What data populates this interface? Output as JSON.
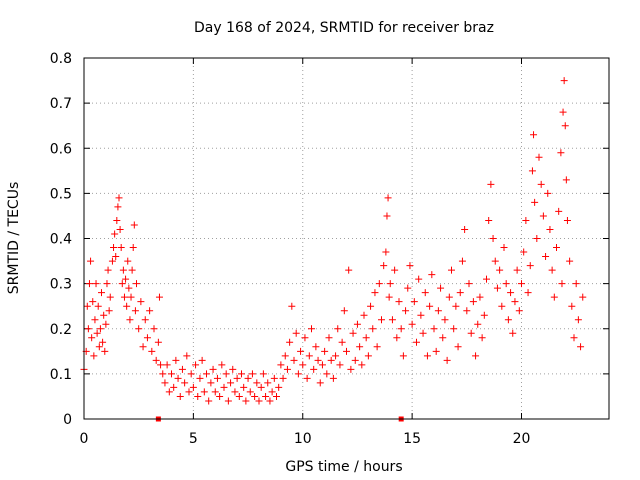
{
  "chart_data": {
    "type": "scatter",
    "title": "Day 168 of 2024, SRMTID for receiver braz",
    "xlabel": "GPS time / hours",
    "ylabel": "SRMTID / TECUs",
    "xlim": [
      0,
      24
    ],
    "ylim": [
      0,
      0.8
    ],
    "xticks": [
      0,
      5,
      10,
      15,
      20
    ],
    "xtick_labels": [
      "0",
      "5",
      "10",
      "15",
      "20"
    ],
    "yticks": [
      0,
      0.1,
      0.2,
      0.3,
      0.4,
      0.5,
      0.6,
      0.7,
      0.8
    ],
    "ytick_labels": [
      "0",
      "0.1",
      "0.2",
      "0.3",
      "0.4",
      "0.5",
      "0.6",
      "0.7",
      "0.8"
    ],
    "grid": true,
    "marker": "+",
    "colors": {
      "series": "#ff0000",
      "grid": "#a0a0a0",
      "axis": "#000000"
    },
    "series": [
      {
        "name": "SRMTID braz",
        "points": [
          [
            0.0,
            0.11
          ],
          [
            0.1,
            0.15
          ],
          [
            0.15,
            0.25
          ],
          [
            0.2,
            0.2
          ],
          [
            0.25,
            0.3
          ],
          [
            0.3,
            0.35
          ],
          [
            0.35,
            0.18
          ],
          [
            0.4,
            0.26
          ],
          [
            0.45,
            0.14
          ],
          [
            0.5,
            0.22
          ],
          [
            0.55,
            0.3
          ],
          [
            0.6,
            0.19
          ],
          [
            0.65,
            0.25
          ],
          [
            0.7,
            0.16
          ],
          [
            0.75,
            0.2
          ],
          [
            0.8,
            0.28
          ],
          [
            0.85,
            0.17
          ],
          [
            0.9,
            0.23
          ],
          [
            0.95,
            0.15
          ],
          [
            1.0,
            0.21
          ],
          [
            1.05,
            0.3
          ],
          [
            1.1,
            0.33
          ],
          [
            1.15,
            0.24
          ],
          [
            1.2,
            0.27
          ],
          [
            1.3,
            0.35
          ],
          [
            1.35,
            0.38
          ],
          [
            1.4,
            0.41
          ],
          [
            1.45,
            0.36
          ],
          [
            1.5,
            0.44
          ],
          [
            1.55,
            0.47
          ],
          [
            1.6,
            0.49
          ],
          [
            1.65,
            0.42
          ],
          [
            1.7,
            0.38
          ],
          [
            1.75,
            0.3
          ],
          [
            1.8,
            0.33
          ],
          [
            1.85,
            0.27
          ],
          [
            1.9,
            0.31
          ],
          [
            1.95,
            0.25
          ],
          [
            2.0,
            0.35
          ],
          [
            2.05,
            0.29
          ],
          [
            2.1,
            0.22
          ],
          [
            2.15,
            0.27
          ],
          [
            2.2,
            0.33
          ],
          [
            2.25,
            0.38
          ],
          [
            2.3,
            0.43
          ],
          [
            2.35,
            0.24
          ],
          [
            2.4,
            0.3
          ],
          [
            2.5,
            0.2
          ],
          [
            2.6,
            0.26
          ],
          [
            2.7,
            0.16
          ],
          [
            2.8,
            0.22
          ],
          [
            2.9,
            0.18
          ],
          [
            3.0,
            0.24
          ],
          [
            3.1,
            0.15
          ],
          [
            3.2,
            0.2
          ],
          [
            3.3,
            0.13
          ],
          [
            3.4,
            0.17
          ],
          [
            3.45,
            0.27
          ],
          [
            3.5,
            0.12
          ],
          [
            3.6,
            0.1
          ],
          [
            3.7,
            0.08
          ],
          [
            3.8,
            0.12
          ],
          [
            3.9,
            0.06
          ],
          [
            4.0,
            0.1
          ],
          [
            4.1,
            0.07
          ],
          [
            4.2,
            0.13
          ],
          [
            4.3,
            0.09
          ],
          [
            4.4,
            0.05
          ],
          [
            4.5,
            0.11
          ],
          [
            4.6,
            0.08
          ],
          [
            4.7,
            0.14
          ],
          [
            4.8,
            0.06
          ],
          [
            4.9,
            0.1
          ],
          [
            5.0,
            0.07
          ],
          [
            5.1,
            0.12
          ],
          [
            5.2,
            0.05
          ],
          [
            5.3,
            0.09
          ],
          [
            5.4,
            0.13
          ],
          [
            5.5,
            0.06
          ],
          [
            5.6,
            0.1
          ],
          [
            5.7,
            0.04
          ],
          [
            5.8,
            0.08
          ],
          [
            5.9,
            0.11
          ],
          [
            6.0,
            0.06
          ],
          [
            6.1,
            0.09
          ],
          [
            6.2,
            0.05
          ],
          [
            6.3,
            0.12
          ],
          [
            6.4,
            0.07
          ],
          [
            6.5,
            0.1
          ],
          [
            6.6,
            0.04
          ],
          [
            6.7,
            0.08
          ],
          [
            6.8,
            0.11
          ],
          [
            6.9,
            0.06
          ],
          [
            7.0,
            0.09
          ],
          [
            7.1,
            0.05
          ],
          [
            7.2,
            0.1
          ],
          [
            7.3,
            0.07
          ],
          [
            7.4,
            0.04
          ],
          [
            7.5,
            0.09
          ],
          [
            7.6,
            0.06
          ],
          [
            7.7,
            0.1
          ],
          [
            7.8,
            0.05
          ],
          [
            7.9,
            0.08
          ],
          [
            8.0,
            0.04
          ],
          [
            8.1,
            0.07
          ],
          [
            8.2,
            0.1
          ],
          [
            8.3,
            0.05
          ],
          [
            8.4,
            0.08
          ],
          [
            8.5,
            0.04
          ],
          [
            8.6,
            0.06
          ],
          [
            8.7,
            0.09
          ],
          [
            8.8,
            0.05
          ],
          [
            8.9,
            0.07
          ],
          [
            9.0,
            0.12
          ],
          [
            9.1,
            0.09
          ],
          [
            9.2,
            0.14
          ],
          [
            9.3,
            0.11
          ],
          [
            9.4,
            0.17
          ],
          [
            9.5,
            0.25
          ],
          [
            9.6,
            0.13
          ],
          [
            9.7,
            0.19
          ],
          [
            9.8,
            0.1
          ],
          [
            9.9,
            0.15
          ],
          [
            10.0,
            0.12
          ],
          [
            10.1,
            0.18
          ],
          [
            10.2,
            0.09
          ],
          [
            10.3,
            0.14
          ],
          [
            10.4,
            0.2
          ],
          [
            10.5,
            0.11
          ],
          [
            10.6,
            0.16
          ],
          [
            10.7,
            0.13
          ],
          [
            10.8,
            0.08
          ],
          [
            10.9,
            0.12
          ],
          [
            11.0,
            0.15
          ],
          [
            11.1,
            0.1
          ],
          [
            11.2,
            0.18
          ],
          [
            11.3,
            0.13
          ],
          [
            11.4,
            0.09
          ],
          [
            11.5,
            0.14
          ],
          [
            11.6,
            0.2
          ],
          [
            11.7,
            0.12
          ],
          [
            11.8,
            0.17
          ],
          [
            11.9,
            0.24
          ],
          [
            12.0,
            0.15
          ],
          [
            12.1,
            0.33
          ],
          [
            12.2,
            0.11
          ],
          [
            12.3,
            0.19
          ],
          [
            12.4,
            0.13
          ],
          [
            12.5,
            0.21
          ],
          [
            12.6,
            0.16
          ],
          [
            12.7,
            0.12
          ],
          [
            12.8,
            0.23
          ],
          [
            12.9,
            0.18
          ],
          [
            13.0,
            0.14
          ],
          [
            13.1,
            0.25
          ],
          [
            13.2,
            0.2
          ],
          [
            13.3,
            0.28
          ],
          [
            13.4,
            0.16
          ],
          [
            13.5,
            0.3
          ],
          [
            13.6,
            0.22
          ],
          [
            13.7,
            0.34
          ],
          [
            13.8,
            0.37
          ],
          [
            13.85,
            0.45
          ],
          [
            13.9,
            0.49
          ],
          [
            13.95,
            0.27
          ],
          [
            14.0,
            0.3
          ],
          [
            14.1,
            0.22
          ],
          [
            14.2,
            0.33
          ],
          [
            14.3,
            0.18
          ],
          [
            14.4,
            0.26
          ],
          [
            14.5,
            0.2
          ],
          [
            14.6,
            0.14
          ],
          [
            14.7,
            0.24
          ],
          [
            14.8,
            0.29
          ],
          [
            14.9,
            0.34
          ],
          [
            15.0,
            0.21
          ],
          [
            15.1,
            0.26
          ],
          [
            15.2,
            0.17
          ],
          [
            15.3,
            0.31
          ],
          [
            15.4,
            0.23
          ],
          [
            15.5,
            0.19
          ],
          [
            15.6,
            0.28
          ],
          [
            15.7,
            0.14
          ],
          [
            15.8,
            0.25
          ],
          [
            15.9,
            0.32
          ],
          [
            16.0,
            0.2
          ],
          [
            16.1,
            0.15
          ],
          [
            16.2,
            0.24
          ],
          [
            16.3,
            0.29
          ],
          [
            16.4,
            0.18
          ],
          [
            16.5,
            0.22
          ],
          [
            16.6,
            0.13
          ],
          [
            16.7,
            0.27
          ],
          [
            16.8,
            0.33
          ],
          [
            16.9,
            0.2
          ],
          [
            17.0,
            0.25
          ],
          [
            17.1,
            0.16
          ],
          [
            17.2,
            0.28
          ],
          [
            17.3,
            0.35
          ],
          [
            17.4,
            0.42
          ],
          [
            17.5,
            0.24
          ],
          [
            17.6,
            0.3
          ],
          [
            17.7,
            0.19
          ],
          [
            17.8,
            0.26
          ],
          [
            17.9,
            0.14
          ],
          [
            18.0,
            0.21
          ],
          [
            18.1,
            0.27
          ],
          [
            18.2,
            0.18
          ],
          [
            18.3,
            0.23
          ],
          [
            18.4,
            0.31
          ],
          [
            18.5,
            0.44
          ],
          [
            18.6,
            0.52
          ],
          [
            18.7,
            0.4
          ],
          [
            18.8,
            0.35
          ],
          [
            18.9,
            0.29
          ],
          [
            19.0,
            0.33
          ],
          [
            19.1,
            0.25
          ],
          [
            19.2,
            0.38
          ],
          [
            19.3,
            0.3
          ],
          [
            19.4,
            0.22
          ],
          [
            19.5,
            0.28
          ],
          [
            19.6,
            0.19
          ],
          [
            19.7,
            0.26
          ],
          [
            19.8,
            0.33
          ],
          [
            19.9,
            0.24
          ],
          [
            20.0,
            0.3
          ],
          [
            20.1,
            0.37
          ],
          [
            20.2,
            0.44
          ],
          [
            20.3,
            0.28
          ],
          [
            20.4,
            0.34
          ],
          [
            20.5,
            0.55
          ],
          [
            20.55,
            0.63
          ],
          [
            20.6,
            0.48
          ],
          [
            20.7,
            0.4
          ],
          [
            20.8,
            0.58
          ],
          [
            20.9,
            0.52
          ],
          [
            21.0,
            0.45
          ],
          [
            21.1,
            0.36
          ],
          [
            21.2,
            0.5
          ],
          [
            21.3,
            0.42
          ],
          [
            21.4,
            0.33
          ],
          [
            21.5,
            0.27
          ],
          [
            21.6,
            0.38
          ],
          [
            21.7,
            0.46
          ],
          [
            21.8,
            0.59
          ],
          [
            21.85,
            0.3
          ],
          [
            21.9,
            0.68
          ],
          [
            21.95,
            0.75
          ],
          [
            22.0,
            0.65
          ],
          [
            22.05,
            0.53
          ],
          [
            22.1,
            0.44
          ],
          [
            22.2,
            0.35
          ],
          [
            22.3,
            0.25
          ],
          [
            22.4,
            0.18
          ],
          [
            22.5,
            0.3
          ],
          [
            22.6,
            0.22
          ],
          [
            22.7,
            0.16
          ],
          [
            22.8,
            0.27
          ]
        ]
      }
    ],
    "markers_on_x_axis": [
      {
        "x": 3.4,
        "y": 0
      },
      {
        "x": 14.5,
        "y": 0
      }
    ]
  }
}
